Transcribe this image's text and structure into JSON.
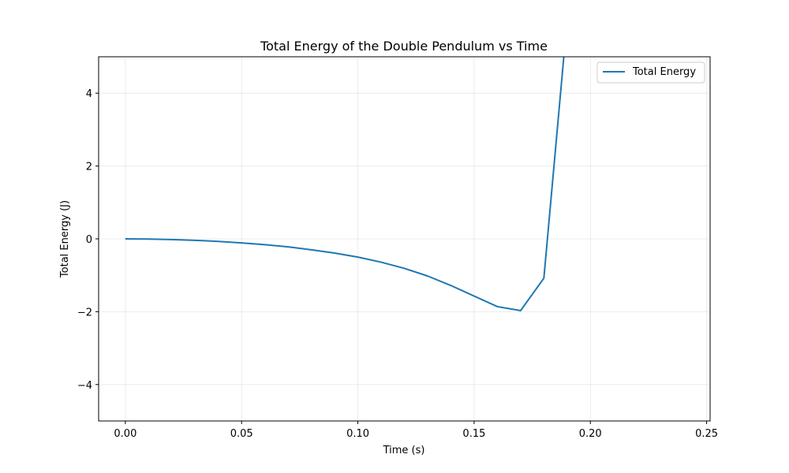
{
  "chart_data": {
    "type": "line",
    "title": "Total Energy of the Double Pendulum vs Time",
    "xlabel": "Time (s)",
    "ylabel": "Total Energy (J)",
    "xlim": [
      -0.0115,
      0.2515
    ],
    "ylim": [
      -5,
      5
    ],
    "xticks": [
      0.0,
      0.05,
      0.1,
      0.15,
      0.2,
      0.25
    ],
    "xtick_labels": [
      "0.00",
      "0.05",
      "0.10",
      "0.15",
      "0.20",
      "0.25"
    ],
    "yticks": [
      -4,
      -2,
      0,
      2,
      4
    ],
    "ytick_labels": [
      "−4",
      "−2",
      "0",
      "2",
      "4"
    ],
    "grid": true,
    "legend": {
      "position": "top-right"
    },
    "series": [
      {
        "name": "Total Energy",
        "color": "#1f77b4",
        "x": [
          0.0,
          0.01,
          0.02,
          0.03,
          0.04,
          0.05,
          0.06,
          0.07,
          0.08,
          0.09,
          0.1,
          0.11,
          0.12,
          0.13,
          0.14,
          0.15,
          0.16,
          0.17,
          0.18,
          0.19
        ],
        "y": [
          0.0,
          -0.005,
          -0.02,
          -0.04,
          -0.07,
          -0.11,
          -0.16,
          -0.22,
          -0.3,
          -0.39,
          -0.5,
          -0.64,
          -0.81,
          -1.02,
          -1.28,
          -1.57,
          -1.86,
          -1.97,
          -1.08,
          6.0
        ]
      }
    ]
  }
}
